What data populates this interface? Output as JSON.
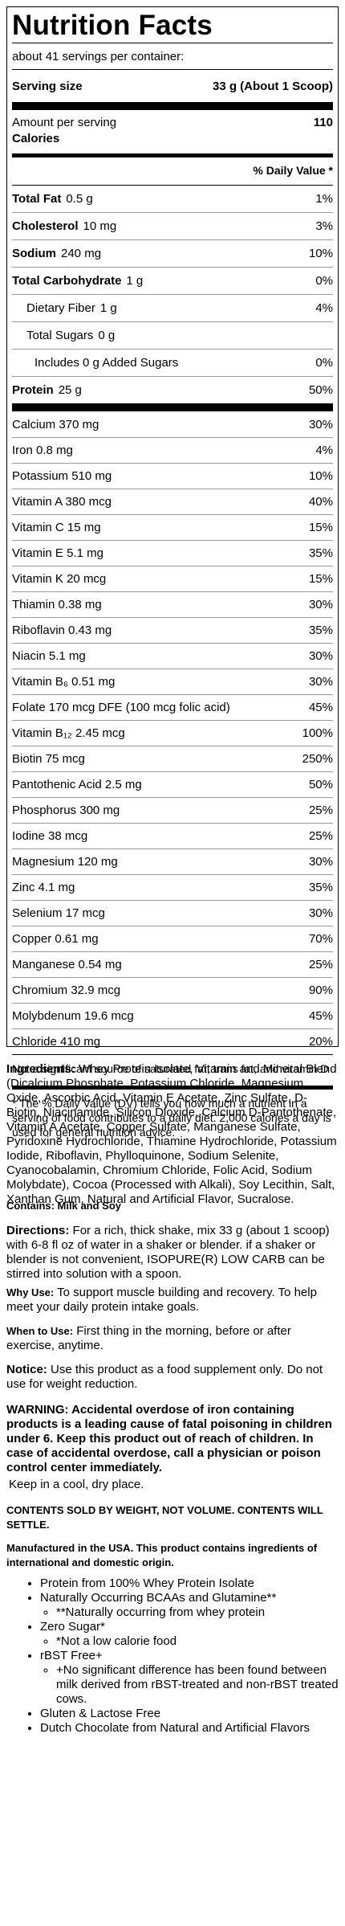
{
  "label": {
    "title": "Nutrition Facts",
    "servings": "about 41 servings per container:",
    "serving_size_label": "Serving size",
    "serving_size_value": "33 g (About 1 Scoop)",
    "amount_per_serving": "Amount per serving",
    "calories_label": "Calories",
    "calories_value": "110",
    "dv_header": "% Daily Value *",
    "macros": [
      {
        "name": "Total Fat",
        "amount": "0.5 g",
        "dv": "1%",
        "bold": true
      },
      {
        "name": "Cholesterol",
        "amount": "10 mg",
        "dv": "3%",
        "bold": true
      },
      {
        "name": "Sodium",
        "amount": "240 mg",
        "dv": "10%",
        "bold": true
      },
      {
        "name": "Total Carbohydrate",
        "amount": "1 g",
        "dv": "0%",
        "bold": true
      },
      {
        "name": "Dietary Fiber",
        "amount": "1 g",
        "dv": "4%",
        "bold": false
      },
      {
        "name": "Total Sugars",
        "amount": "0 g",
        "dv": "",
        "bold": false
      },
      {
        "name": "Includes 0 g Added Sugars",
        "amount": "",
        "dv": "0%",
        "bold": false,
        "extra_indent": true
      }
    ],
    "protein": {
      "name": "Protein",
      "amount": "25 g",
      "dv": "50%"
    },
    "micros": [
      {
        "name": "Calcium 370 mg",
        "dv": "30%"
      },
      {
        "name": "Iron 0.8 mg",
        "dv": "4%"
      },
      {
        "name": "Potassium 510 mg",
        "dv": "10%"
      },
      {
        "name": "Vitamin A 380 mcg",
        "dv": "40%"
      },
      {
        "name": "Vitamin C 15 mg",
        "dv": "15%"
      },
      {
        "name": "Vitamin E 5.1 mg",
        "dv": "35%"
      },
      {
        "name": "Vitamin K 20 mcg",
        "dv": "15%"
      },
      {
        "name": "Thiamin 0.38 mg",
        "dv": "30%"
      },
      {
        "name": "Riboflavin 0.43 mg",
        "dv": "35%"
      },
      {
        "name": "Niacin 5.1 mg",
        "dv": "30%"
      },
      {
        "name": "Vitamin B₆ 0.51 mg",
        "dv": "30%"
      },
      {
        "name": "Folate 170 mcg DFE (100 mcg folic acid)",
        "dv": "45%"
      },
      {
        "name": "Vitamin B₁₂ 2.45 mcg",
        "dv": "100%"
      },
      {
        "name": "Biotin 75 mcg",
        "dv": "250%"
      },
      {
        "name": "Pantothenic Acid 2.5 mg",
        "dv": "50%"
      },
      {
        "name": "Phosphorus 300 mg",
        "dv": "25%"
      },
      {
        "name": "Iodine 38 mcg",
        "dv": "25%"
      },
      {
        "name": "Magnesium 120 mg",
        "dv": "30%"
      },
      {
        "name": "Zinc 4.1 mg",
        "dv": "35%"
      },
      {
        "name": "Selenium 17 mcg",
        "dv": "30%"
      },
      {
        "name": "Copper 0.61 mg",
        "dv": "70%"
      },
      {
        "name": "Manganese 0.54 mg",
        "dv": "25%"
      },
      {
        "name": "Chromium 32.9 mcg",
        "dv": "90%"
      },
      {
        "name": "Molybdenum 19.6 mcg",
        "dv": "45%"
      },
      {
        "name": "Chloride 410 mg",
        "dv": "20%"
      }
    ],
    "not_significant": "Not a significant source of saturated fat, trans fat, and vitamin D",
    "footnote": "* The % Daily Value (DV) tells you how much a nutrient in a serving of food contributes to a daily diet. 2,000 calories a day is used for general nutrition advice."
  },
  "ingredients": {
    "label": "Ingredients:",
    "text": " Whey Protein Isolate, Vitamin and Mineral Blend (Dicalcium Phosphate, Potassium Chloride, Magnesium Oxide, Ascorbic Acid, Vitamin E Acetate, Zinc Sulfate, D-Biotin, Niacinamide, Silicon Dioxide, Calcium D-Pantothenate, Vitamin A Acetate, Copper Sulfate, Manganese Sulfate, Pyridoxine Hydrochloride, Thiamine Hydrochloride, Potassium Iodide, Riboflavin, Phylloquinone, Sodium Selenite, Cyanocobalamin, Chromium Chloride, Folic Acid, Sodium Molybdate), Cocoa (Processed with Alkali), Soy Lecithin, Salt, Xanthan Gum, Natural and Artificial Flavor, Sucralose."
  },
  "contains": "Contains: Milk and Soy",
  "directions": {
    "label": "Directions:",
    "text": " For a rich, thick shake, mix 33 g (about 1 scoop) with 6-8 fl oz of water in a shaker or blender. if a shaker or blender is not convenient, ISOPURE(R) LOW CARB can be stirred into solution with a spoon."
  },
  "why_use": {
    "label": "Why Use:",
    "text": " To support muscle building and recovery. To help meet your daily protein intake goals."
  },
  "when_to_use": {
    "label": "When to Use:",
    "text": " First thing in the morning, before or after exercise, anytime."
  },
  "notice": {
    "label": "Notice:",
    "text": " Use this product as a food supplement only. Do not use for weight reduction."
  },
  "warning": "WARNING: Accidental overdose of iron containing products is a leading cause of fatal poisoning in children under 6. Keep this product out of reach of children. In case of accidental overdose, call a physician or poison control center immediately.",
  "storage": "Keep in a cool, dry place.",
  "sold_by_weight": "CONTENTS SOLD BY WEIGHT, NOT VOLUME. CONTENTS WILL SETTLE.",
  "manufactured": "Manufactured in the USA. This product contains ingredients of international and domestic origin.",
  "features": [
    {
      "text": "Protein from 100% Whey Protein Isolate",
      "sub": []
    },
    {
      "text": "Naturally Occurring BCAAs and Glutamine**",
      "sub": [
        "**Naturally occurring from whey protein"
      ]
    },
    {
      "text": "Zero Sugar*",
      "sub": [
        "*Not a low calorie food"
      ]
    },
    {
      "text": "rBST Free+",
      "sub": [
        "+No significant difference has been found between milk derived from rBST-treated and non-rBST treated cows."
      ]
    },
    {
      "text": "Gluten & Lactose Free",
      "sub": []
    },
    {
      "text": "Dutch Chocolate from Natural and Artificial Flavors",
      "sub": []
    }
  ]
}
